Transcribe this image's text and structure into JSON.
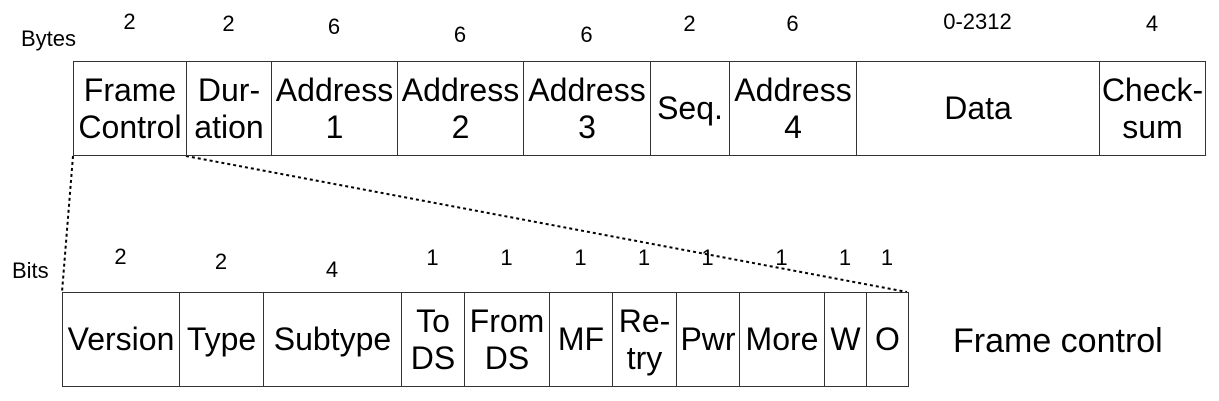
{
  "frame": {
    "axis_label": "Bytes",
    "fields": [
      {
        "name": "field-frame-control",
        "label": "Frame\nControl",
        "size": "2"
      },
      {
        "name": "field-duration",
        "label": "Dur-\nation",
        "size": "2"
      },
      {
        "name": "field-address-1",
        "label": "Address\n1",
        "size": "6"
      },
      {
        "name": "field-address-2",
        "label": "Address\n2",
        "size": "6"
      },
      {
        "name": "field-address-3",
        "label": "Address\n3",
        "size": "6"
      },
      {
        "name": "field-seq",
        "label": "Seq.",
        "size": "2"
      },
      {
        "name": "field-address-4",
        "label": "Address\n4",
        "size": "6"
      },
      {
        "name": "field-data",
        "label": "Data",
        "size": "0-2312"
      },
      {
        "name": "field-checksum",
        "label": "Check-\nsum",
        "size": "4"
      }
    ]
  },
  "frame_control": {
    "axis_label": "Bits",
    "caption": "Frame control",
    "fields": [
      {
        "name": "bit-version",
        "label": "Version",
        "size": "2"
      },
      {
        "name": "bit-type",
        "label": "Type",
        "size": "2"
      },
      {
        "name": "bit-subtype",
        "label": "Subtype",
        "size": "4"
      },
      {
        "name": "bit-to-ds",
        "label": "To\nDS",
        "size": "1"
      },
      {
        "name": "bit-from-ds",
        "label": "From\nDS",
        "size": "1"
      },
      {
        "name": "bit-mf",
        "label": "MF",
        "size": "1"
      },
      {
        "name": "bit-retry",
        "label": "Re-\ntry",
        "size": "1"
      },
      {
        "name": "bit-pwr",
        "label": "Pwr",
        "size": "1"
      },
      {
        "name": "bit-more",
        "label": "More",
        "size": "1"
      },
      {
        "name": "bit-w",
        "label": "W",
        "size": "1"
      },
      {
        "name": "bit-o",
        "label": "O",
        "size": "1"
      }
    ]
  }
}
